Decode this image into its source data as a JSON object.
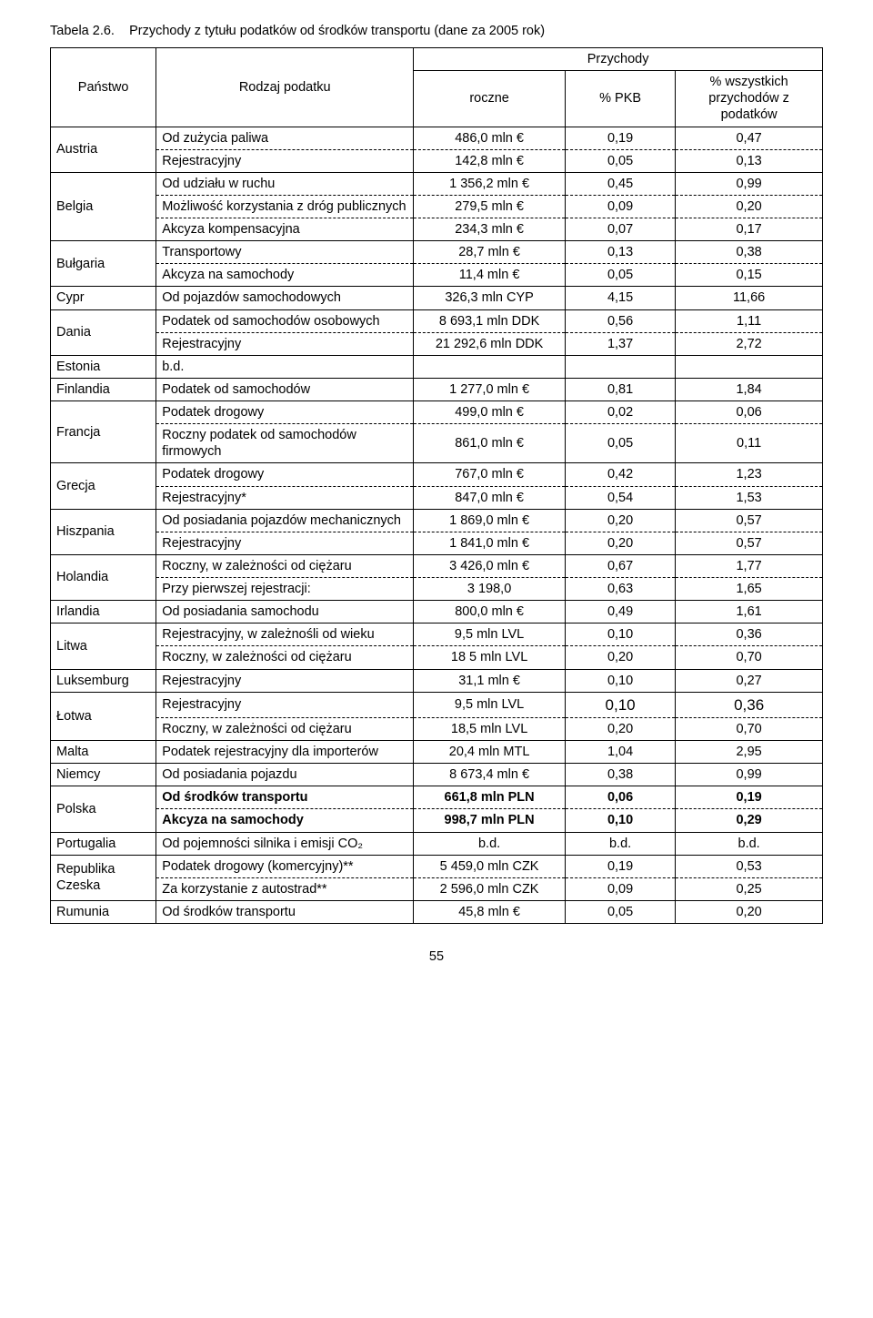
{
  "caption_prefix": "Tabela 2.6.",
  "caption_text": "Przychody z tytułu podatków od środków transportu (dane za 2005 rok)",
  "header": {
    "country": "Państwo",
    "tax_type": "Rodzaj podatku",
    "revenues": "Przychody",
    "annual": "roczne",
    "pct_gdp": "% PKB",
    "pct_all": "% wszystkich przychodów z podatków"
  },
  "footer_page": "55",
  "rows": [
    {
      "country": "Austria",
      "items": [
        {
          "tax": "Od zużycia paliwa",
          "v": "486,0 mln €",
          "g": "0,19",
          "a": "0,47"
        },
        {
          "tax": "Rejestracyjny",
          "v": "142,8 mln €",
          "g": "0,05",
          "a": "0,13"
        }
      ]
    },
    {
      "country": "Belgia",
      "items": [
        {
          "tax": "Od udziału w ruchu",
          "v": "1 356,2 mln €",
          "g": "0,45",
          "a": "0,99"
        },
        {
          "tax": "Możliwość korzystania z dróg publicznych",
          "v": "279,5 mln €",
          "g": "0,09",
          "a": "0,20"
        },
        {
          "tax": "Akcyza kompensacyjna",
          "v": "234,3 mln €",
          "g": "0,07",
          "a": "0,17"
        }
      ]
    },
    {
      "country": "Bułgaria",
      "items": [
        {
          "tax": "Transportowy",
          "v": "28,7 mln €",
          "g": "0,13",
          "a": "0,38"
        },
        {
          "tax": "Akcyza na samochody",
          "v": "11,4 mln €",
          "g": "0,05",
          "a": "0,15"
        }
      ]
    },
    {
      "country": "Cypr",
      "items": [
        {
          "tax": "Od pojazdów samochodowych",
          "v": "326,3 mln CYP",
          "g": "4,15",
          "a": "11,66"
        }
      ]
    },
    {
      "country": "Dania",
      "items": [
        {
          "tax": "Podatek od samochodów osobowych",
          "v": "8 693,1 mln DDK",
          "g": "0,56",
          "a": "1,11"
        },
        {
          "tax": "Rejestracyjny",
          "v": "21 292,6 mln DDK",
          "g": "1,37",
          "a": "2,72"
        }
      ]
    },
    {
      "country": "Estonia",
      "items": [
        {
          "tax": "b.d.",
          "v": "",
          "g": "",
          "a": ""
        }
      ]
    },
    {
      "country": "Finlandia",
      "items": [
        {
          "tax": "Podatek od samochodów",
          "v": "1 277,0 mln €",
          "g": "0,81",
          "a": "1,84"
        }
      ]
    },
    {
      "country": "Francja",
      "items": [
        {
          "tax": "Podatek drogowy",
          "v": "499,0 mln €",
          "g": "0,02",
          "a": "0,06"
        },
        {
          "tax": "Roczny podatek od samochodów firmowych",
          "v": "861,0 mln €",
          "g": "0,05",
          "a": "0,11"
        }
      ]
    },
    {
      "country": "Grecja",
      "items": [
        {
          "tax": "Podatek drogowy",
          "v": "767,0 mln €",
          "g": "0,42",
          "a": "1,23"
        },
        {
          "tax": "Rejestracyjny*",
          "v": "847,0 mln €",
          "g": "0,54",
          "a": "1,53"
        }
      ]
    },
    {
      "country": "Hiszpania",
      "items": [
        {
          "tax": "Od posiadania pojazdów mechanicznych",
          "v": "1 869,0 mln €",
          "g": "0,20",
          "a": "0,57"
        },
        {
          "tax": "Rejestracyjny",
          "v": "1 841,0 mln €",
          "g": "0,20",
          "a": "0,57"
        }
      ]
    },
    {
      "country": "Holandia",
      "items": [
        {
          "tax": "Roczny, w zależności od ciężaru",
          "v": "3 426,0 mln €",
          "g": "0,67",
          "a": "1,77"
        },
        {
          "tax": "Przy pierwszej rejestracji:",
          "v": "3 198,0",
          "g": "0,63",
          "a": "1,65"
        }
      ]
    },
    {
      "country": "Irlandia",
      "items": [
        {
          "tax": "Od posiadania samochodu",
          "v": "800,0 mln €",
          "g": "0,49",
          "a": "1,61"
        }
      ]
    },
    {
      "country": "Litwa",
      "items": [
        {
          "tax": "Rejestracyjny, w zależnośli od wieku",
          "v": "9,5 mln LVL",
          "g": "0,10",
          "a": "0,36"
        },
        {
          "tax": "Roczny, w zależności od ciężaru",
          "v": "18 5 mln LVL",
          "g": "0,20",
          "a": "0,70"
        }
      ]
    },
    {
      "country": "Luksemburg",
      "items": [
        {
          "tax": "Rejestracyjny",
          "v": "31,1 mln €",
          "g": "0,10",
          "a": "0,27"
        }
      ]
    },
    {
      "country": "Łotwa",
      "items": [
        {
          "tax": "Rejestracyjny",
          "v": "9,5 mln LVL",
          "g": "0,10",
          "a": "0,36",
          "big": true
        },
        {
          "tax": "Roczny, w zależności od ciężaru",
          "v": "18,5 mln LVL",
          "g": "0,20",
          "a": "0,70"
        }
      ]
    },
    {
      "country": "Malta",
      "items": [
        {
          "tax": "Podatek rejestracyjny dla importerów",
          "v": "20,4 mln MTL",
          "g": "1,04",
          "a": "2,95"
        }
      ]
    },
    {
      "country": "Niemcy",
      "items": [
        {
          "tax": "Od posiadania pojazdu",
          "v": "8 673,4 mln €",
          "g": "0,38",
          "a": "0,99"
        }
      ]
    },
    {
      "country": "Polska",
      "items": [
        {
          "tax": "Od środków transportu",
          "v": "661,8 mln PLN",
          "g": "0,06",
          "a": "0,19",
          "bold": true
        },
        {
          "tax": "Akcyza na samochody",
          "v": "998,7 mln PLN",
          "g": "0,10",
          "a": "0,29",
          "bold": true
        }
      ]
    },
    {
      "country": "Portugalia",
      "items": [
        {
          "tax": "Od pojemności silnika i emisji CO₂",
          "v": "b.d.",
          "g": "b.d.",
          "a": "b.d."
        }
      ]
    },
    {
      "country": "Republika Czeska",
      "items": [
        {
          "tax": "Podatek drogowy (komercyjny)**",
          "v": "5 459,0 mln CZK",
          "g": "0,19",
          "a": "0,53"
        },
        {
          "tax": "Za korzystanie z autostrad**",
          "v": "2 596,0 mln CZK",
          "g": "0,09",
          "a": "0,25"
        }
      ]
    },
    {
      "country": "Rumunia",
      "items": [
        {
          "tax": "Od środków transportu",
          "v": "45,8 mln €",
          "g": "0,05",
          "a": "0,20"
        }
      ]
    }
  ]
}
